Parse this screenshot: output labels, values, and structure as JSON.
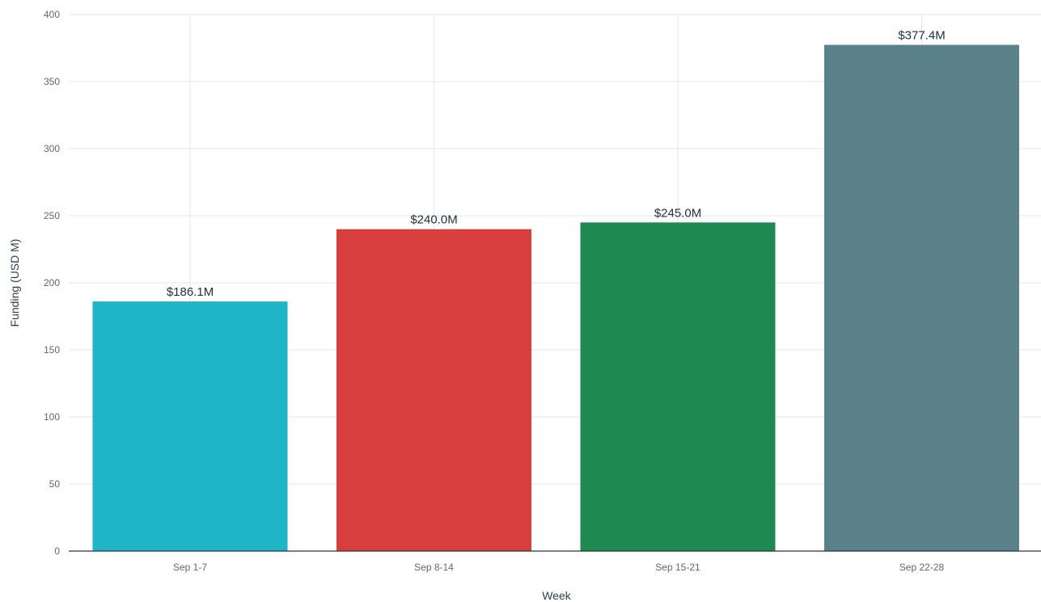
{
  "chart_data": {
    "type": "bar",
    "xlabel": "Week",
    "ylabel": "Funding (USD M)",
    "categories": [
      "Sep 1-7",
      "Sep 8-14",
      "Sep 15-21",
      "Sep 22-28"
    ],
    "values": [
      186.1,
      240.0,
      245.0,
      377.4
    ],
    "data_labels": [
      "$186.1M",
      "$240.0M",
      "$245.0M",
      "$377.4M"
    ],
    "colors": [
      "#1fb5c9",
      "#d93e3e",
      "#1e8a52",
      "#5a8189"
    ],
    "ylim": [
      0,
      400
    ],
    "yticks": [
      0,
      50,
      100,
      150,
      200,
      250,
      300,
      350,
      400
    ],
    "grid": true,
    "legend": "none"
  }
}
